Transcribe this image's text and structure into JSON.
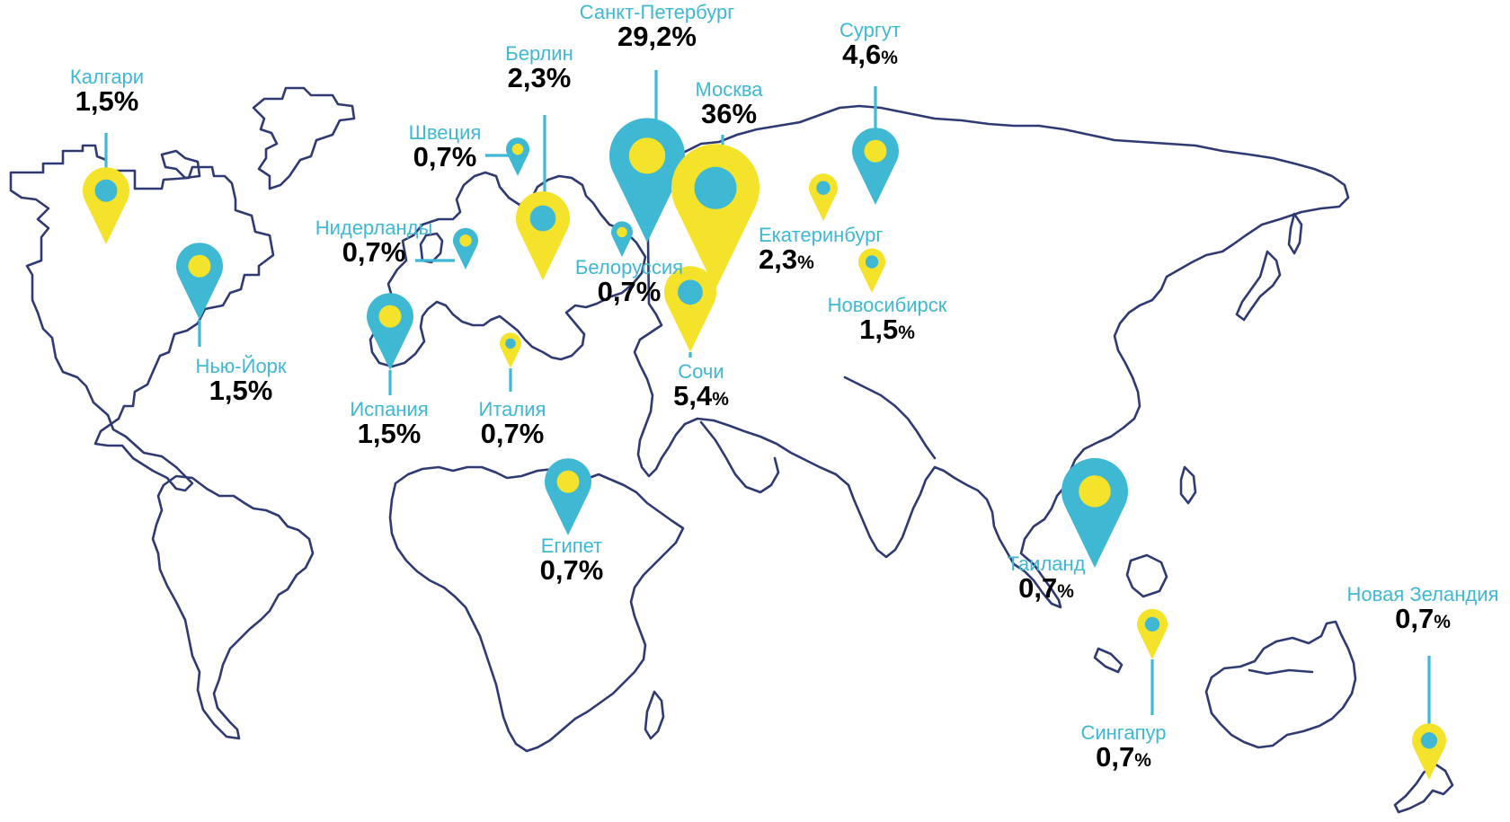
{
  "colors": {
    "outline": "#2f3a73",
    "cyan": "#3fb8d4",
    "yellow": "#f4e32a",
    "text": "#000000"
  },
  "locations": [
    {
      "city": "Калгари",
      "value": "1,5",
      "sign": "%",
      "small_sign": false,
      "pin_style": "yellow-outer"
    },
    {
      "city": "Нью-Йорк",
      "value": "1,5",
      "sign": "%",
      "small_sign": false,
      "pin_style": "cyan-outer"
    },
    {
      "city": "Швеция",
      "value": "0,7",
      "sign": "%",
      "small_sign": false,
      "pin_style": "cyan-outer"
    },
    {
      "city": "Нидерланды",
      "value": "0,7",
      "sign": "%",
      "small_sign": false,
      "pin_style": "cyan-outer"
    },
    {
      "city": "Берлин",
      "value": "2,3",
      "sign": "%",
      "small_sign": false,
      "pin_style": "yellow-outer"
    },
    {
      "city": "Санкт-Петербург",
      "value": "29,2",
      "sign": "%",
      "small_sign": false,
      "pin_style": "cyan-outer"
    },
    {
      "city": "Москва",
      "value": "36",
      "sign": "%",
      "small_sign": false,
      "pin_style": "yellow-outer"
    },
    {
      "city": "Белоруссия",
      "value": "0,7",
      "sign": "%",
      "small_sign": false,
      "pin_style": "cyan-outer"
    },
    {
      "city": "Сочи",
      "value": "5,4",
      "sign": "%",
      "small_sign": true,
      "pin_style": "yellow-outer"
    },
    {
      "city": "Испания",
      "value": "1,5",
      "sign": "%",
      "small_sign": false,
      "pin_style": "cyan-outer"
    },
    {
      "city": "Италия",
      "value": "0,7",
      "sign": "%",
      "small_sign": false,
      "pin_style": "yellow-outer"
    },
    {
      "city": "Сургут",
      "value": "4,6",
      "sign": "%",
      "small_sign": true,
      "pin_style": "cyan-outer"
    },
    {
      "city": "Екатеринбург",
      "value": "2,3",
      "sign": "%",
      "small_sign": true,
      "pin_style": "yellow-outer"
    },
    {
      "city": "Новосибирск",
      "value": "1,5",
      "sign": "%",
      "small_sign": true,
      "pin_style": "yellow-outer"
    },
    {
      "city": "Египет",
      "value": "0,7",
      "sign": "%",
      "small_sign": false,
      "pin_style": "cyan-outer"
    },
    {
      "city": "Таиланд",
      "value": "0,7",
      "sign": "%",
      "small_sign": true,
      "pin_style": "cyan-outer"
    },
    {
      "city": "Сингапур",
      "value": "0,7",
      "sign": "%",
      "small_sign": true,
      "pin_style": "yellow-outer"
    },
    {
      "city": "Новая Зеландия",
      "value": "0,7",
      "sign": "%",
      "small_sign": true,
      "pin_style": "yellow-outer"
    }
  ]
}
